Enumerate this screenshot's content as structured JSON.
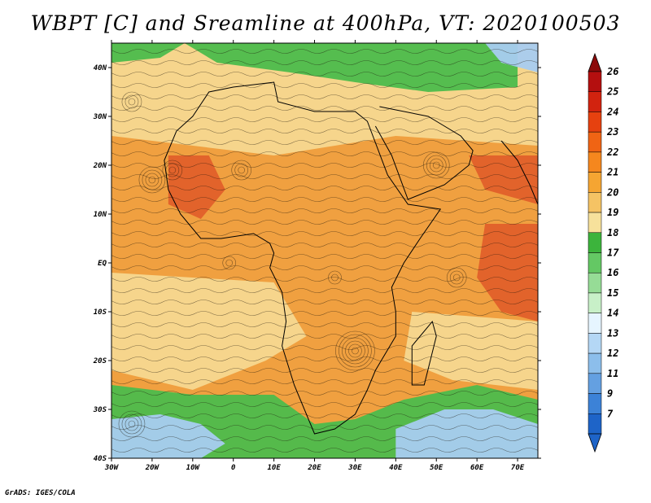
{
  "title": "WBPT [C] and Sreamline at 400hPa, VT: 2020100503",
  "credit": "GrADS: IGES/COLA",
  "map": {
    "variable": "Wet-bulb potential temperature",
    "units": "C",
    "level": "400hPa",
    "valid_time": "2020100503",
    "lon_range": [
      -30,
      75
    ],
    "lat_range": [
      -40,
      45
    ],
    "lon_ticks": [
      "30W",
      "20W",
      "10W",
      "0",
      "10E",
      "20E",
      "30E",
      "40E",
      "50E",
      "60E",
      "70E"
    ],
    "lat_ticks": [
      "40N",
      "30N",
      "20N",
      "10N",
      "EQ",
      "10S",
      "20S",
      "30S",
      "40S"
    ]
  },
  "colorbar": {
    "labels": [
      "26",
      "25",
      "24",
      "23",
      "22",
      "21",
      "20",
      "19",
      "18",
      "17",
      "16",
      "15",
      "14",
      "13",
      "12",
      "11",
      "9",
      "7"
    ],
    "colors": [
      "#b40f0f",
      "#d2230f",
      "#e6410f",
      "#f06414",
      "#f5871e",
      "#f5a532",
      "#f5c364",
      "#f7e19b",
      "#3cb43c",
      "#64c864",
      "#96dc96",
      "#c8f0c8",
      "#e6f5ff",
      "#b4d7f5",
      "#8cbeeb",
      "#64a0e1",
      "#3c82d7",
      "#1e64c8"
    ],
    "top_arrow_color": "#8c0a0a",
    "bottom_arrow_color": "#1e64c8"
  },
  "colors": {
    "warm_orange": "#f0a040",
    "hot_red": "#e0602a",
    "pale_yellow": "#f5d890",
    "green": "#4cbc4c",
    "light_blue": "#a8ccf0"
  }
}
